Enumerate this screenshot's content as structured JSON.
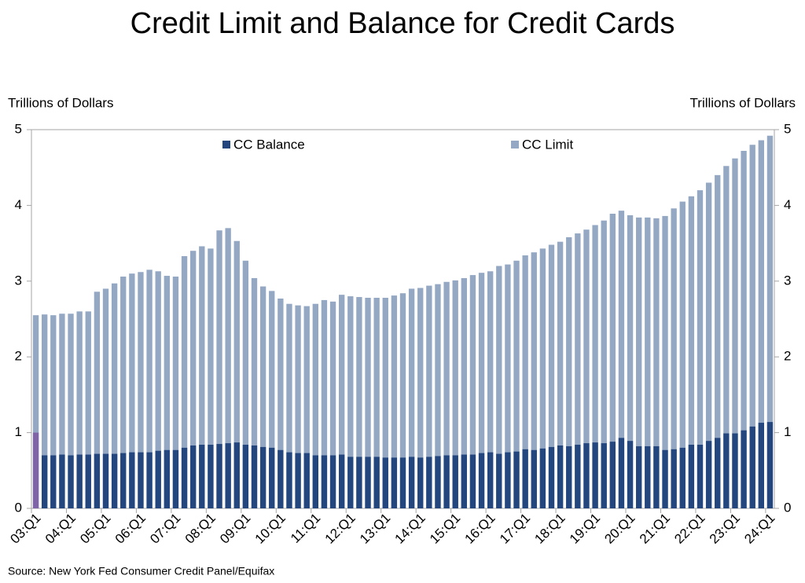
{
  "chart_data": {
    "type": "bar",
    "title": "Credit Limit and Balance for Credit Cards",
    "y_label": "Trillions of Dollars",
    "y2_label": "Trillions of Dollars",
    "source": "Source: New York Fed Consumer Credit Panel/Equifax",
    "categories": [
      "03:Q1",
      null,
      null,
      null,
      "04:Q1",
      null,
      null,
      null,
      "05:Q1",
      null,
      null,
      null,
      "06:Q1",
      null,
      null,
      null,
      "07:Q1",
      null,
      null,
      null,
      "08:Q1",
      null,
      null,
      null,
      "09:Q1",
      null,
      null,
      null,
      "10:Q1",
      null,
      null,
      null,
      "11:Q1",
      null,
      null,
      null,
      "12:Q1",
      null,
      null,
      null,
      "13:Q1",
      null,
      null,
      null,
      "14:Q1",
      null,
      null,
      null,
      "15:Q1",
      null,
      null,
      null,
      "16:Q1",
      null,
      null,
      null,
      "17:Q1",
      null,
      null,
      null,
      "18:Q1",
      null,
      null,
      null,
      "19:Q1",
      null,
      null,
      null,
      "20:Q1",
      null,
      null,
      null,
      "21:Q1",
      null,
      null,
      null,
      "22:Q1",
      null,
      null,
      null,
      "23:Q1",
      null,
      null,
      null,
      "24:Q1"
    ],
    "series": [
      {
        "name": "CC Limit",
        "color": "#94a8c4",
        "values": [
          2.55,
          2.56,
          2.55,
          2.57,
          2.57,
          2.6,
          2.6,
          2.86,
          2.9,
          2.97,
          3.06,
          3.1,
          3.12,
          3.15,
          3.13,
          3.07,
          3.06,
          3.33,
          3.4,
          3.46,
          3.43,
          3.67,
          3.7,
          3.53,
          3.27,
          3.04,
          2.93,
          2.87,
          2.77,
          2.7,
          2.68,
          2.67,
          2.7,
          2.75,
          2.73,
          2.82,
          2.8,
          2.79,
          2.78,
          2.78,
          2.78,
          2.81,
          2.84,
          2.9,
          2.91,
          2.94,
          2.96,
          2.99,
          3.01,
          3.04,
          3.08,
          3.11,
          3.13,
          3.2,
          3.22,
          3.27,
          3.34,
          3.38,
          3.43,
          3.48,
          3.52,
          3.58,
          3.63,
          3.68,
          3.74,
          3.8,
          3.89,
          3.93,
          3.87,
          3.84,
          3.84,
          3.83,
          3.86,
          3.96,
          4.05,
          4.12,
          4.2,
          4.3,
          4.4,
          4.52,
          4.62,
          4.72,
          4.8,
          4.86,
          4.92
        ]
      },
      {
        "name": "CC Balance",
        "color": "#23467f",
        "point_colors": {
          "0": "#8064a8"
        },
        "values": [
          1.0,
          0.7,
          0.7,
          0.71,
          0.7,
          0.71,
          0.71,
          0.72,
          0.72,
          0.72,
          0.73,
          0.74,
          0.74,
          0.74,
          0.76,
          0.77,
          0.77,
          0.8,
          0.83,
          0.84,
          0.84,
          0.85,
          0.86,
          0.87,
          0.84,
          0.83,
          0.81,
          0.8,
          0.77,
          0.74,
          0.73,
          0.73,
          0.7,
          0.7,
          0.7,
          0.71,
          0.68,
          0.68,
          0.68,
          0.68,
          0.67,
          0.67,
          0.67,
          0.68,
          0.67,
          0.68,
          0.69,
          0.7,
          0.7,
          0.71,
          0.71,
          0.73,
          0.74,
          0.72,
          0.74,
          0.75,
          0.78,
          0.77,
          0.79,
          0.81,
          0.83,
          0.82,
          0.84,
          0.86,
          0.87,
          0.86,
          0.88,
          0.93,
          0.89,
          0.82,
          0.82,
          0.82,
          0.77,
          0.78,
          0.8,
          0.84,
          0.84,
          0.89,
          0.93,
          0.99,
          0.99,
          1.03,
          1.08,
          1.13,
          1.14
        ]
      }
    ],
    "ylim": [
      0,
      5
    ],
    "yticks": [
      0,
      1,
      2,
      3,
      4,
      5
    ],
    "y2lim": [
      0,
      5
    ],
    "y2ticks": [
      0,
      1,
      2,
      3,
      4,
      5
    ],
    "grid": false
  }
}
